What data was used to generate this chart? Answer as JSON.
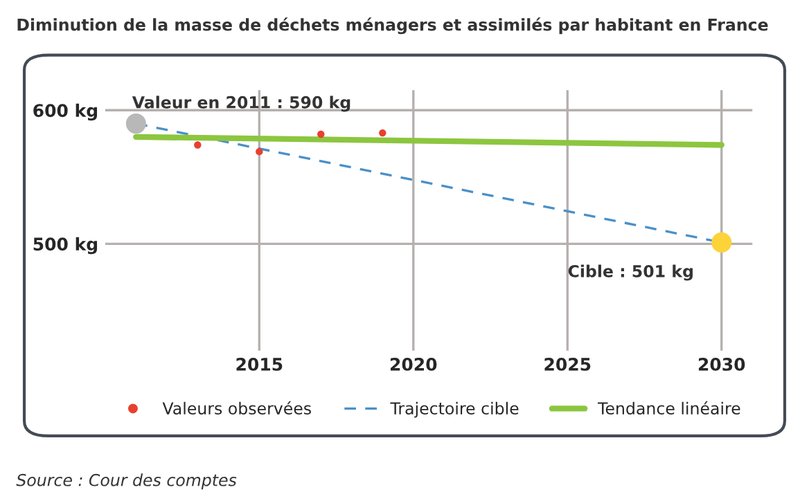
{
  "chart_data": {
    "type": "line",
    "title": "Diminution de la masse de déchets ménagers et assimilés par habitant en France",
    "xlim": [
      2010,
      2031
    ],
    "xticks": [
      2015,
      2020,
      2025,
      2030
    ],
    "ylim": [
      420,
      615
    ],
    "yticks": [
      {
        "value": 600,
        "label": "600 kg"
      },
      {
        "value": 500,
        "label": "500 kg"
      }
    ],
    "grid": true,
    "legend": "bottom",
    "series": [
      {
        "name": "Valeurs observées",
        "type": "scatter",
        "color": "#e8402f",
        "x": [
          2013,
          2015,
          2017,
          2019
        ],
        "values": [
          574,
          569,
          582,
          583
        ]
      },
      {
        "name": "Trajectoire cible",
        "line_style": "dashed",
        "color": "#4a90c8",
        "x": [
          2011,
          2030
        ],
        "values": [
          590,
          501
        ]
      },
      {
        "name": "Tendance linéaire",
        "line_style": "solid",
        "color": "#8cc63f",
        "x": [
          2011,
          2030
        ],
        "values": [
          580,
          574
        ]
      },
      {
        "type": "scatter",
        "color": "#b8b8b8",
        "x": [
          2011
        ],
        "values": [
          590
        ]
      },
      {
        "type": "scatter",
        "color": "#fdd33a",
        "x": [
          2030
        ],
        "values": [
          501
        ]
      }
    ],
    "annotations": [
      {
        "text": "Valeur en 2011 : 590 kg",
        "x": 2011,
        "y": 590
      },
      {
        "text": "Cible : 501 kg",
        "x": 2030,
        "y": 501
      },
      "Source : Cour des comptes"
    ]
  }
}
